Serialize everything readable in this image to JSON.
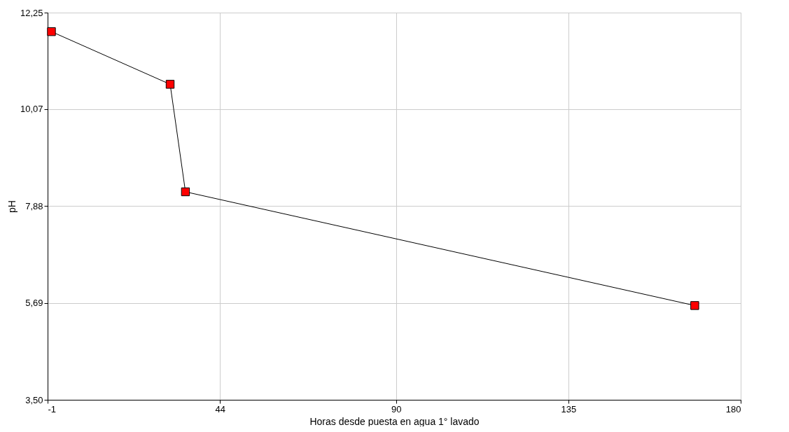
{
  "chart_data": {
    "type": "line",
    "xlabel": "Horas desde puesta en agua 1° lavado",
    "ylabel": "pH",
    "x": [
      0,
      31,
      35,
      168
    ],
    "series": [
      {
        "color": "#ff0000",
        "values": [
          11.82,
          10.63,
          8.2,
          5.63
        ]
      }
    ],
    "xlim": [
      -1,
      180
    ],
    "xticks": [
      -1,
      44,
      90,
      135,
      180
    ],
    "ylim": [
      3.5,
      12.25
    ],
    "yticks": [
      {
        "value": 3.5,
        "label": "3,50"
      },
      {
        "value": 5.69,
        "label": "5,69"
      },
      {
        "value": 7.88,
        "label": "7,88"
      },
      {
        "value": 10.07,
        "label": "10,07"
      },
      {
        "value": 12.25,
        "label": "12,25"
      }
    ],
    "grid": true,
    "marker": "square",
    "line_style": "solid"
  }
}
